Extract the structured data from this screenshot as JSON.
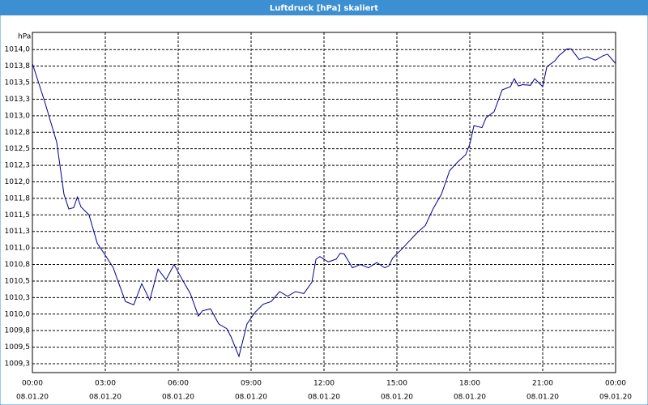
{
  "chart_data": {
    "type": "line",
    "title": "Luftdruck [hPa] skaliert",
    "y_unit_label": "hPa",
    "x": [
      0,
      0.5,
      1,
      1.3,
      1.5,
      1.7,
      1.85,
      2,
      2.33,
      2.67,
      3,
      3.33,
      3.5,
      3.83,
      4.17,
      4.5,
      4.83,
      5.17,
      5.5,
      5.83,
      6.17,
      6.5,
      6.83,
      7,
      7.33,
      7.67,
      8,
      8.17,
      8.5,
      8.83,
      9.17,
      9.5,
      9.83,
      10.17,
      10.5,
      10.83,
      11.17,
      11.5,
      11.67,
      11.83,
      12.17,
      12.5,
      12.67,
      12.83,
      13.17,
      13.5,
      13.83,
      14.17,
      14.5,
      14.67,
      14.83,
      15.17,
      15.5,
      15.83,
      16.17,
      16.5,
      16.83,
      17.17,
      17.5,
      17.83,
      18,
      18.17,
      18.5,
      18.67,
      19,
      19.33,
      19.67,
      19.83,
      20,
      20.17,
      20.5,
      20.67,
      21,
      21.17,
      21.5,
      21.67,
      22,
      22.17,
      22.5,
      22.83,
      23.17,
      23.5,
      23.67,
      24
    ],
    "series": [
      {
        "name": "Luftdruck",
        "color": "#00008b",
        "values": [
          1013.79,
          1013.22,
          1012.6,
          1011.81,
          1011.59,
          1011.61,
          1011.77,
          1011.62,
          1011.5,
          1011.07,
          1010.89,
          1010.7,
          1010.52,
          1010.19,
          1010.14,
          1010.46,
          1010.21,
          1010.68,
          1010.52,
          1010.75,
          1010.52,
          1010.31,
          1009.97,
          1010.05,
          1010.08,
          1009.85,
          1009.78,
          1009.66,
          1009.36,
          1009.85,
          1010.03,
          1010.15,
          1010.19,
          1010.34,
          1010.27,
          1010.34,
          1010.31,
          1010.48,
          1010.83,
          1010.87,
          1010.79,
          1010.83,
          1010.92,
          1010.91,
          1010.7,
          1010.75,
          1010.7,
          1010.78,
          1010.7,
          1010.73,
          1010.85,
          1010.97,
          1011.1,
          1011.23,
          1011.34,
          1011.6,
          1011.81,
          1012.17,
          1012.3,
          1012.41,
          1012.57,
          1012.85,
          1012.82,
          1012.97,
          1013.06,
          1013.39,
          1013.44,
          1013.56,
          1013.45,
          1013.47,
          1013.46,
          1013.56,
          1013.44,
          1013.74,
          1013.83,
          1013.91,
          1014.01,
          1014.01,
          1013.85,
          1013.89,
          1013.84,
          1013.91,
          1013.93,
          1013.79
        ]
      }
    ],
    "xlim": [
      0,
      24
    ],
    "xticks": [
      {
        "value": 0,
        "label": "00:00"
      },
      {
        "value": 3,
        "label": "03:00"
      },
      {
        "value": 6,
        "label": "06:00"
      },
      {
        "value": 9,
        "label": "09:00"
      },
      {
        "value": 12,
        "label": "12:00"
      },
      {
        "value": 15,
        "label": "15:00"
      },
      {
        "value": 18,
        "label": "18:00"
      },
      {
        "value": 21,
        "label": "21:00"
      },
      {
        "value": 24,
        "label": "00:00"
      }
    ],
    "xtick_dates": [
      "08.01.20",
      "08.01.20",
      "08.01.20",
      "08.01.20",
      "08.01.20",
      "08.01.20",
      "08.01.20",
      "08.01.20",
      "09.01.20"
    ],
    "ylim": [
      1009.115,
      1014.26
    ],
    "yticks": [
      {
        "value": 1014,
        "label": "1014,0"
      },
      {
        "value": 1013.75,
        "label": "1013,8"
      },
      {
        "value": 1013.5,
        "label": "1013,5"
      },
      {
        "value": 1013.25,
        "label": "1013,3"
      },
      {
        "value": 1013,
        "label": "1013,0"
      },
      {
        "value": 1012.75,
        "label": "1012,8"
      },
      {
        "value": 1012.5,
        "label": "1012,5"
      },
      {
        "value": 1012.25,
        "label": "1012,3"
      },
      {
        "value": 1012,
        "label": "1012,0"
      },
      {
        "value": 1011.75,
        "label": "1011,8"
      },
      {
        "value": 1011.5,
        "label": "1011,5"
      },
      {
        "value": 1011.25,
        "label": "1011,3"
      },
      {
        "value": 1011,
        "label": "1011,0"
      },
      {
        "value": 1010.75,
        "label": "1010,8"
      },
      {
        "value": 1010.5,
        "label": "1010,5"
      },
      {
        "value": 1010.25,
        "label": "1010,3"
      },
      {
        "value": 1010,
        "label": "1010,0"
      },
      {
        "value": 1009.75,
        "label": "1009,8"
      },
      {
        "value": 1009.5,
        "label": "1009,5"
      },
      {
        "value": 1009.25,
        "label": "1009,3"
      }
    ],
    "grid": true
  }
}
